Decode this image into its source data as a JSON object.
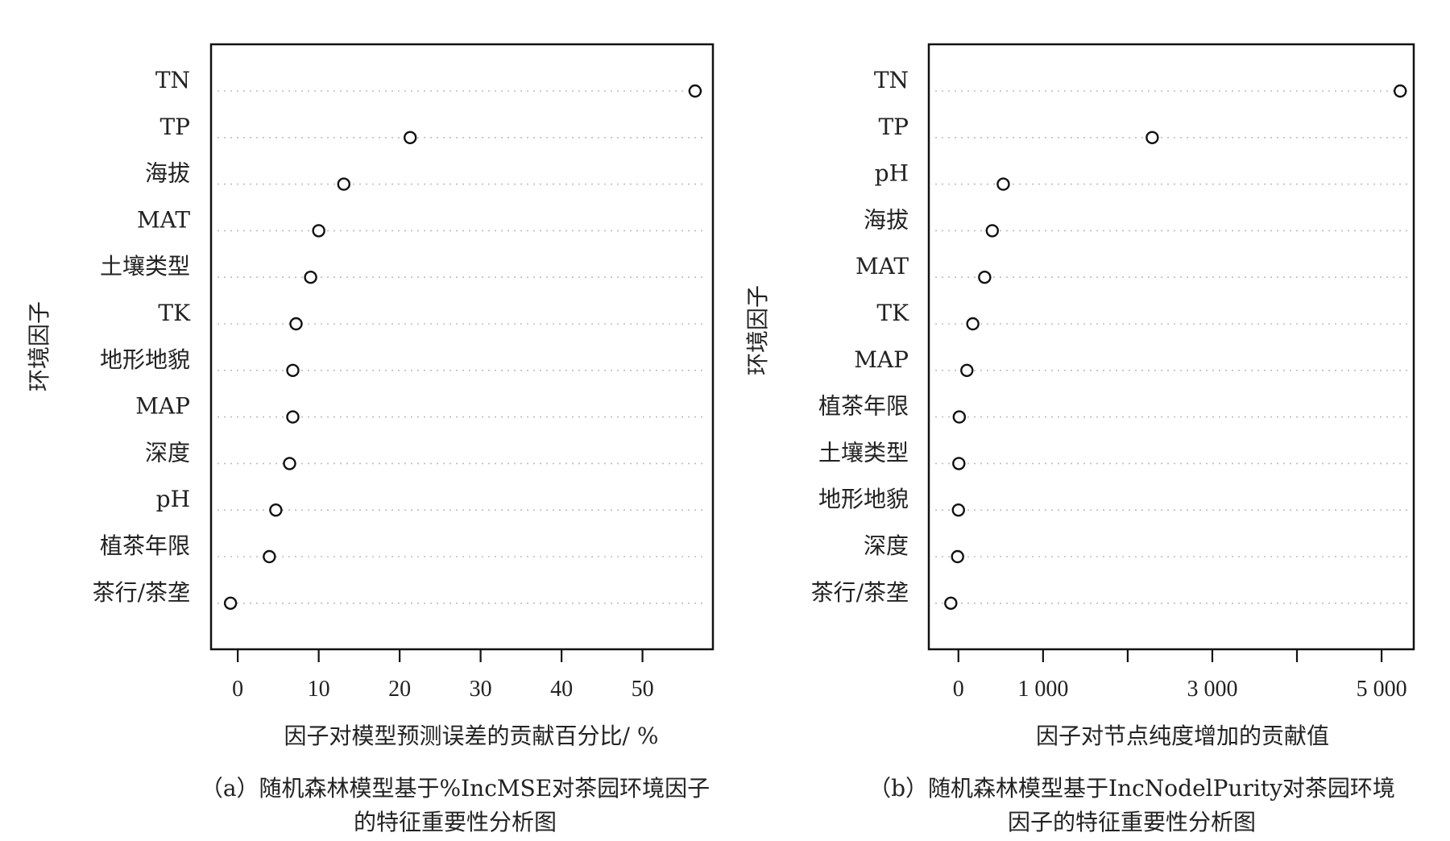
{
  "chart_data": [
    {
      "type": "scatter",
      "ylabel": "环境因子",
      "xlabel": "因子对模型预测误差的贡献百分比/ %",
      "caption_line1": "（a）随机森林模型基于%IncMSE对茶园环境因子",
      "caption_line2": "的特征重要性分析图",
      "categories": [
        "TN",
        "TP",
        "海拔",
        "MAT",
        "土壤类型",
        "TK",
        "地形地貌",
        "MAP",
        "深度",
        "pH",
        "植茶年限",
        "茶行/茶垄"
      ],
      "values": [
        56.5,
        21.3,
        13.1,
        10.0,
        9.0,
        7.2,
        6.8,
        6.8,
        6.4,
        4.7,
        3.9,
        -0.9
      ],
      "xticks": [
        0,
        10,
        20,
        30,
        40,
        50
      ],
      "xtick_labels": [
        "0",
        "10",
        "20",
        "30",
        "40",
        "50"
      ],
      "xlim": [
        -3.3,
        58.7
      ]
    },
    {
      "type": "scatter",
      "ylabel": "环境因子",
      "xlabel": "因子对节点纯度增加的贡献值",
      "caption_line1": "（b）随机森林模型基于IncNodelPurity对茶园环境",
      "caption_line2": "因子的特征重要性分析图",
      "categories": [
        "TN",
        "TP",
        "pH",
        "海拔",
        "MAT",
        "TK",
        "MAP",
        "植茶年限",
        "土壤类型",
        "地形地貌",
        "深度",
        "茶行/茶垄"
      ],
      "values": [
        5220,
        2290,
        530,
        400,
        310,
        170,
        100,
        10,
        5,
        0,
        -10,
        -90
      ],
      "xticks": [
        0,
        1000,
        2000,
        3000,
        4000,
        5000
      ],
      "xtick_labels": [
        "0",
        "1 000",
        "",
        "3 000",
        "",
        "5 000"
      ],
      "xlim": [
        -350,
        5380
      ]
    }
  ]
}
